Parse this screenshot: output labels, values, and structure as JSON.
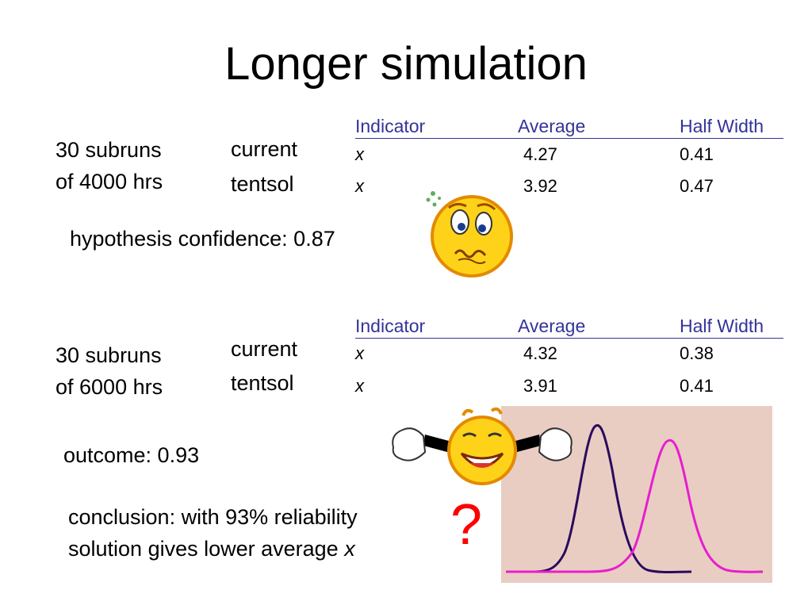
{
  "slide": {
    "title": "Longer simulation"
  },
  "block1": {
    "subruns_line1": "30 subruns",
    "subruns_line2": "of 4000 hrs",
    "row_labels": [
      "current",
      "tentsol"
    ],
    "headers": [
      "Indicator",
      "Average",
      "Half Width"
    ],
    "rows": [
      {
        "indicator": "x",
        "average": "4.27",
        "half_width": "0.41"
      },
      {
        "indicator": "x",
        "average": "3.92",
        "half_width": "0.47"
      }
    ],
    "result_text": "hypothesis confidence: 0.87"
  },
  "block2": {
    "subruns_line1": "30 subruns",
    "subruns_line2": "of 6000 hrs",
    "row_labels": [
      "current",
      "tentsol"
    ],
    "headers": [
      "Indicator",
      "Average",
      "Half Width"
    ],
    "rows": [
      {
        "indicator": "x",
        "average": "4.32",
        "half_width": "0.38"
      },
      {
        "indicator": "x",
        "average": "3.91",
        "half_width": "0.41"
      }
    ],
    "result_text": "outcome: 0.93"
  },
  "conclusion": {
    "line1": "conclusion: with 93% reliability",
    "line2_prefix": "solution gives lower average ",
    "line2_var": "x",
    "question_mark": "?"
  },
  "illustrations": {
    "worried_face_icon": "worried-smiley-icon",
    "happy_face_icon": "shrugging-smiley-icon"
  },
  "colors": {
    "header_blue": "#333399",
    "curve_dark": "#2a0a5e",
    "curve_magenta": "#e61ecf",
    "graph_background": "#e9cdc2",
    "question_red": "#ff0000",
    "face_yellow": "#ffd21a"
  }
}
